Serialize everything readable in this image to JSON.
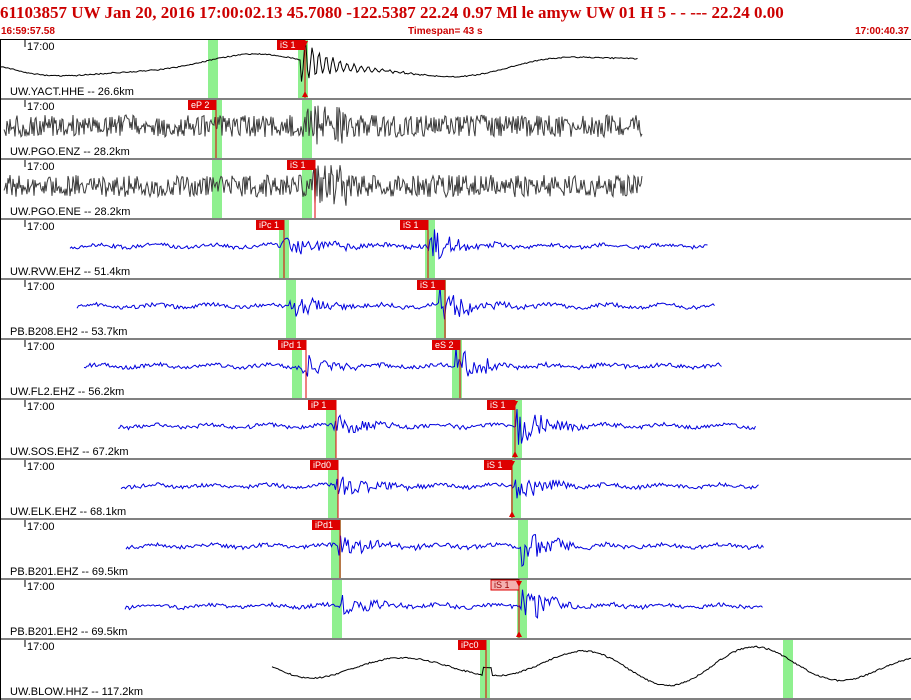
{
  "header": {
    "title": "61103857 UW Jan 20, 2016 17:00:02.13    45.7080 -122.5387 22.24 0.97 Ml le     amyw     UW 01 H     5   -  -  --- 22.24 0.00"
  },
  "timebar": {
    "start": "16:59:57.58",
    "timespan": "Timespan=  43 s",
    "end": "17:00:40.37"
  },
  "colors": {
    "trace_black": "#000000",
    "trace_gray": "#3a3a3a",
    "trace_blue": "#0000dd",
    "pick_red": "#dd0000",
    "pick_pink": "#f4b0b0",
    "green_window": "#8ff08f",
    "header_red": "#cc0000"
  },
  "panels": [
    {
      "tick": "17:00",
      "label": "UW.YACT.HHE -- 26.6km",
      "color": "black",
      "picks": [
        {
          "text": "iS 1",
          "style": "red",
          "marker": true
        }
      ]
    },
    {
      "tick": "17:00",
      "label": "UW.PGO.ENZ -- 28.2km",
      "color": "gray",
      "picks": [
        {
          "text": "eP 2",
          "style": "red",
          "marker": false
        }
      ]
    },
    {
      "tick": "17:00",
      "label": "UW.PGO.ENE -- 28.2km",
      "color": "gray",
      "picks": [
        {
          "text": "iS 1",
          "style": "red",
          "marker": false
        }
      ]
    },
    {
      "tick": "17:00",
      "label": "UW.RVW.EHZ -- 51.4km",
      "color": "blue",
      "picks": [
        {
          "text": "iPc 1",
          "style": "red",
          "marker": false
        },
        {
          "text": "iS 1",
          "style": "red",
          "marker": false
        }
      ]
    },
    {
      "tick": "17:00",
      "label": "PB.B208.EH2 -- 53.7km",
      "color": "blue",
      "picks": [
        {
          "text": "iS 1",
          "style": "red",
          "marker": false
        }
      ]
    },
    {
      "tick": "17:00",
      "label": "UW.FL2.EHZ -- 56.2km",
      "color": "blue",
      "picks": [
        {
          "text": "iPd 1",
          "style": "red",
          "marker": false
        },
        {
          "text": "eS 2",
          "style": "red",
          "marker": false
        }
      ]
    },
    {
      "tick": "17:00",
      "label": "UW.SOS.EHZ -- 67.2km",
      "color": "blue",
      "picks": [
        {
          "text": "iP 1",
          "style": "red",
          "marker": false
        },
        {
          "text": "iS 1",
          "style": "red",
          "marker": true
        }
      ]
    },
    {
      "tick": "17:00",
      "label": "UW.ELK.EHZ -- 68.1km",
      "color": "blue",
      "picks": [
        {
          "text": "iPd0",
          "style": "red",
          "marker": false
        },
        {
          "text": "iS 1",
          "style": "red",
          "marker": true
        }
      ]
    },
    {
      "tick": "17:00",
      "label": "PB.B201.EHZ -- 69.5km",
      "color": "blue",
      "picks": [
        {
          "text": "iPd1",
          "style": "red",
          "marker": false
        }
      ]
    },
    {
      "tick": "17:00",
      "label": "PB.B201.EH2 -- 69.5km",
      "color": "blue",
      "picks": [
        {
          "text": "iS 1",
          "style": "pink",
          "marker": true
        }
      ]
    },
    {
      "tick": "17:00",
      "label": "UW.BLOW.HHZ -- 117.2km",
      "color": "black",
      "picks": [
        {
          "text": "iPc0",
          "style": "red",
          "marker": false
        }
      ]
    }
  ]
}
